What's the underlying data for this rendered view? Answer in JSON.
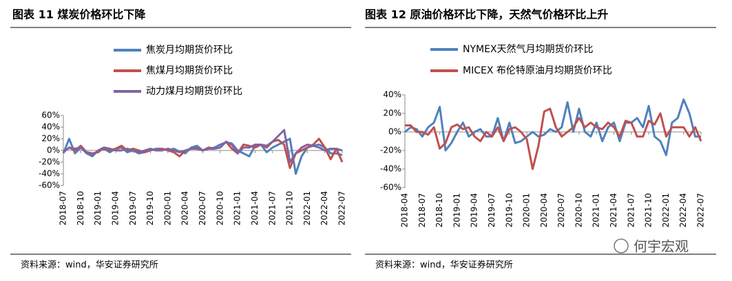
{
  "chart_data": [
    {
      "type": "line",
      "title": "图表 11  煤炭价格环比下降",
      "categories": [
        "2018-07",
        null,
        null,
        "2018-10",
        null,
        null,
        "2019-01",
        null,
        null,
        "2019-04",
        null,
        null,
        "2019-07",
        null,
        null,
        "2019-10",
        null,
        null,
        "2020-01",
        null,
        null,
        "2020-04",
        null,
        null,
        "2020-07",
        null,
        null,
        "2020-10",
        null,
        null,
        "2021-01",
        null,
        null,
        "2021-04",
        null,
        null,
        "2021-07",
        null,
        null,
        "2021-10",
        null,
        null,
        "2022-01",
        null,
        null,
        "2022-04",
        null,
        null,
        "2022-07"
      ],
      "series": [
        {
          "name": "焦炭月均期货价环比",
          "color": "#4f81bd",
          "values": [
            -5,
            20,
            -5,
            5,
            -5,
            -10,
            0,
            3,
            -3,
            3,
            5,
            -3,
            0,
            -5,
            -3,
            0,
            3,
            3,
            0,
            3,
            -2,
            -5,
            5,
            8,
            0,
            3,
            5,
            10,
            14,
            12,
            0,
            -5,
            -10,
            8,
            10,
            -3,
            5,
            10,
            15,
            20,
            -40,
            -10,
            5,
            8,
            10,
            5,
            -5,
            -5,
            -8
          ]
        },
        {
          "name": "焦煤月均期货价环比",
          "color": "#c0504d",
          "values": [
            -3,
            5,
            0,
            8,
            -3,
            -5,
            -3,
            5,
            0,
            3,
            8,
            0,
            3,
            0,
            -3,
            2,
            0,
            3,
            0,
            -3,
            -10,
            0,
            3,
            3,
            0,
            5,
            3,
            5,
            15,
            3,
            -5,
            10,
            8,
            5,
            10,
            5,
            15,
            18,
            10,
            -30,
            -5,
            0,
            5,
            10,
            20,
            5,
            -15,
            3,
            -20
          ]
        },
        {
          "name": "动力煤月均期货价环比",
          "color": "#8064a2",
          "values": [
            -3,
            5,
            3,
            5,
            -3,
            -8,
            0,
            5,
            3,
            0,
            0,
            3,
            0,
            -3,
            0,
            3,
            0,
            0,
            3,
            0,
            -3,
            0,
            3,
            5,
            0,
            3,
            3,
            5,
            15,
            10,
            -5,
            5,
            5,
            10,
            10,
            8,
            15,
            25,
            35,
            -20,
            -5,
            5,
            10,
            8,
            5,
            0,
            3,
            3,
            0
          ]
        }
      ],
      "ylim": [
        -60,
        60
      ],
      "yticks": [
        {
          "value": 60,
          "label": "60%"
        },
        {
          "value": 40,
          "label": "40%"
        },
        {
          "value": 20,
          "label": "20%"
        },
        {
          "value": 0,
          "label": "0%"
        },
        {
          "value": -20,
          "label": "-20%"
        },
        {
          "value": -40,
          "label": "-40%"
        },
        {
          "value": -60,
          "label": "-60%"
        }
      ],
      "source": "资料来源：wind，华安证券研究所"
    },
    {
      "type": "line",
      "title": "图表 12  原油价格环比下降，天然气价格环比上升",
      "categories": [
        "2018-04",
        null,
        null,
        "2018-07",
        null,
        null,
        "2018-10",
        null,
        null,
        "2019-01",
        null,
        null,
        "2019-04",
        null,
        null,
        "2019-07",
        null,
        null,
        "2019-10",
        null,
        null,
        "2020-01",
        null,
        null,
        "2020-04",
        null,
        null,
        "2020-07",
        null,
        null,
        "2020-10",
        null,
        null,
        "2021-01",
        null,
        null,
        "2021-04",
        null,
        null,
        "2021-07",
        null,
        null,
        "2021-10",
        null,
        null,
        "2022-01",
        null,
        null,
        "2022-04",
        null,
        null,
        "2022-07"
      ],
      "series": [
        {
          "name": "NYMEX天然气月均期货价环比",
          "color": "#4f81bd",
          "values": [
            0,
            5,
            3,
            -5,
            5,
            10,
            27,
            -20,
            -12,
            0,
            10,
            -5,
            0,
            3,
            -5,
            -5,
            15,
            -10,
            10,
            -12,
            -10,
            -5,
            0,
            -5,
            -3,
            3,
            0,
            5,
            32,
            0,
            25,
            0,
            -5,
            10,
            -10,
            5,
            10,
            -10,
            10,
            10,
            15,
            5,
            28,
            -5,
            -10,
            -25,
            10,
            15,
            35,
            20,
            -5,
            -5
          ]
        },
        {
          "name": "MICEX 布伦特原油月均期货价环比",
          "color": "#c0504d",
          "values": [
            7,
            7,
            0,
            0,
            -3,
            5,
            -18,
            -12,
            5,
            8,
            3,
            5,
            -5,
            -10,
            0,
            -5,
            5,
            -10,
            3,
            5,
            0,
            -8,
            -40,
            -15,
            22,
            25,
            5,
            -5,
            0,
            5,
            15,
            5,
            10,
            5,
            3,
            10,
            5,
            -5,
            12,
            10,
            -5,
            -5,
            12,
            8,
            20,
            -5,
            5,
            5,
            5,
            -5,
            5,
            -10
          ]
        }
      ],
      "ylim": [
        -60,
        40
      ],
      "yticks": [
        {
          "value": 40,
          "label": "40%"
        },
        {
          "value": 20,
          "label": "20%"
        },
        {
          "value": 0,
          "label": "0%"
        },
        {
          "value": -20,
          "label": "-20%"
        },
        {
          "value": -40,
          "label": "-40%"
        },
        {
          "value": -60,
          "label": "-60%"
        }
      ],
      "source": "资料来源：wind，华安证券研究所"
    }
  ],
  "watermark": "何宇宏观"
}
